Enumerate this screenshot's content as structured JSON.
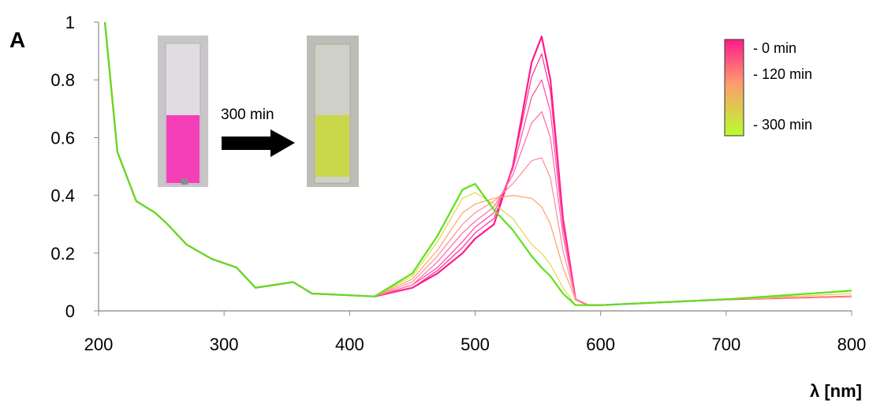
{
  "chart_data": {
    "type": "line",
    "ylabel": "A",
    "xlabel": "λ [nm]",
    "xlim": [
      200,
      800
    ],
    "ylim": [
      0,
      1
    ],
    "x_ticks": [
      "200",
      "300",
      "400",
      "500",
      "600",
      "700",
      "800"
    ],
    "y_ticks": [
      "0",
      "0.2",
      "0.4",
      "0.6",
      "0.8",
      "1"
    ],
    "grid": false,
    "legend": {
      "placement": "top-right",
      "type": "color-gradient",
      "labels": [
        "-  0 min",
        "- 120 min",
        "- 300 min"
      ],
      "colors": [
        "#ff1a8c",
        "#ff9a6e",
        "#b8ff2e"
      ]
    },
    "inset": {
      "arrow_label": "300 min",
      "start_color": "#f53fb8",
      "end_color": "#c9d84a"
    },
    "series": [
      {
        "color": "#ff1a8c",
        "points": [
          [
            205,
            1.0
          ],
          [
            215,
            0.55
          ],
          [
            230,
            0.38
          ],
          [
            245,
            0.34
          ],
          [
            255,
            0.3
          ],
          [
            270,
            0.23
          ],
          [
            290,
            0.18
          ],
          [
            310,
            0.15
          ],
          [
            325,
            0.08
          ],
          [
            340,
            0.09
          ],
          [
            355,
            0.1
          ],
          [
            370,
            0.06
          ],
          [
            420,
            0.05
          ],
          [
            450,
            0.08
          ],
          [
            470,
            0.13
          ],
          [
            490,
            0.2
          ],
          [
            500,
            0.25
          ],
          [
            515,
            0.3
          ],
          [
            530,
            0.5
          ],
          [
            545,
            0.86
          ],
          [
            553,
            0.95
          ],
          [
            560,
            0.8
          ],
          [
            570,
            0.32
          ],
          [
            580,
            0.04
          ],
          [
            590,
            0.02
          ],
          [
            600,
            0.02
          ],
          [
            700,
            0.04
          ],
          [
            800,
            0.05
          ]
        ]
      },
      {
        "color": "#ff2e95",
        "points": [
          [
            205,
            1.0
          ],
          [
            215,
            0.55
          ],
          [
            230,
            0.38
          ],
          [
            245,
            0.34
          ],
          [
            255,
            0.3
          ],
          [
            270,
            0.23
          ],
          [
            290,
            0.18
          ],
          [
            310,
            0.15
          ],
          [
            325,
            0.08
          ],
          [
            340,
            0.09
          ],
          [
            355,
            0.1
          ],
          [
            370,
            0.06
          ],
          [
            420,
            0.05
          ],
          [
            450,
            0.08
          ],
          [
            470,
            0.14
          ],
          [
            490,
            0.22
          ],
          [
            500,
            0.27
          ],
          [
            515,
            0.32
          ],
          [
            530,
            0.5
          ],
          [
            545,
            0.81
          ],
          [
            553,
            0.89
          ],
          [
            560,
            0.76
          ],
          [
            570,
            0.31
          ],
          [
            580,
            0.04
          ],
          [
            590,
            0.02
          ],
          [
            600,
            0.02
          ],
          [
            700,
            0.04
          ],
          [
            800,
            0.05
          ]
        ]
      },
      {
        "color": "#ff4aa0",
        "points": [
          [
            205,
            1.0
          ],
          [
            215,
            0.55
          ],
          [
            230,
            0.38
          ],
          [
            245,
            0.34
          ],
          [
            255,
            0.3
          ],
          [
            270,
            0.23
          ],
          [
            290,
            0.18
          ],
          [
            310,
            0.15
          ],
          [
            325,
            0.08
          ],
          [
            340,
            0.09
          ],
          [
            355,
            0.1
          ],
          [
            370,
            0.06
          ],
          [
            420,
            0.05
          ],
          [
            450,
            0.09
          ],
          [
            470,
            0.15
          ],
          [
            490,
            0.24
          ],
          [
            500,
            0.29
          ],
          [
            515,
            0.34
          ],
          [
            530,
            0.49
          ],
          [
            545,
            0.74
          ],
          [
            553,
            0.8
          ],
          [
            560,
            0.69
          ],
          [
            570,
            0.29
          ],
          [
            580,
            0.04
          ],
          [
            590,
            0.02
          ],
          [
            600,
            0.02
          ],
          [
            700,
            0.04
          ],
          [
            800,
            0.05
          ]
        ]
      },
      {
        "color": "#ff6aa8",
        "points": [
          [
            205,
            1.0
          ],
          [
            215,
            0.55
          ],
          [
            230,
            0.38
          ],
          [
            245,
            0.34
          ],
          [
            255,
            0.3
          ],
          [
            270,
            0.23
          ],
          [
            290,
            0.18
          ],
          [
            310,
            0.15
          ],
          [
            325,
            0.08
          ],
          [
            340,
            0.09
          ],
          [
            355,
            0.1
          ],
          [
            370,
            0.06
          ],
          [
            420,
            0.05
          ],
          [
            450,
            0.09
          ],
          [
            470,
            0.17
          ],
          [
            490,
            0.27
          ],
          [
            500,
            0.31
          ],
          [
            515,
            0.36
          ],
          [
            530,
            0.47
          ],
          [
            545,
            0.65
          ],
          [
            553,
            0.69
          ],
          [
            560,
            0.6
          ],
          [
            570,
            0.26
          ],
          [
            580,
            0.04
          ],
          [
            590,
            0.02
          ],
          [
            600,
            0.02
          ],
          [
            700,
            0.04
          ],
          [
            800,
            0.05
          ]
        ]
      },
      {
        "color": "#ff8d95",
        "points": [
          [
            205,
            1.0
          ],
          [
            215,
            0.55
          ],
          [
            230,
            0.38
          ],
          [
            245,
            0.34
          ],
          [
            255,
            0.3
          ],
          [
            270,
            0.23
          ],
          [
            290,
            0.18
          ],
          [
            310,
            0.15
          ],
          [
            325,
            0.08
          ],
          [
            340,
            0.09
          ],
          [
            355,
            0.1
          ],
          [
            370,
            0.06
          ],
          [
            420,
            0.05
          ],
          [
            450,
            0.1
          ],
          [
            470,
            0.19
          ],
          [
            490,
            0.3
          ],
          [
            500,
            0.34
          ],
          [
            515,
            0.38
          ],
          [
            530,
            0.44
          ],
          [
            545,
            0.52
          ],
          [
            553,
            0.53
          ],
          [
            560,
            0.46
          ],
          [
            570,
            0.21
          ],
          [
            580,
            0.04
          ],
          [
            590,
            0.02
          ],
          [
            600,
            0.02
          ],
          [
            700,
            0.04
          ],
          [
            800,
            0.05
          ]
        ]
      },
      {
        "color": "#ffa26a",
        "points": [
          [
            205,
            1.0
          ],
          [
            215,
            0.55
          ],
          [
            230,
            0.38
          ],
          [
            245,
            0.34
          ],
          [
            255,
            0.3
          ],
          [
            270,
            0.23
          ],
          [
            290,
            0.18
          ],
          [
            310,
            0.15
          ],
          [
            325,
            0.08
          ],
          [
            340,
            0.09
          ],
          [
            355,
            0.1
          ],
          [
            370,
            0.06
          ],
          [
            420,
            0.05
          ],
          [
            450,
            0.11
          ],
          [
            470,
            0.21
          ],
          [
            490,
            0.34
          ],
          [
            500,
            0.37
          ],
          [
            515,
            0.39
          ],
          [
            530,
            0.4
          ],
          [
            545,
            0.39
          ],
          [
            553,
            0.36
          ],
          [
            560,
            0.3
          ],
          [
            570,
            0.15
          ],
          [
            580,
            0.04
          ],
          [
            590,
            0.02
          ],
          [
            600,
            0.02
          ],
          [
            700,
            0.04
          ],
          [
            800,
            0.05
          ]
        ]
      },
      {
        "color": "#e6d64a",
        "points": [
          [
            205,
            1.0
          ],
          [
            215,
            0.55
          ],
          [
            230,
            0.38
          ],
          [
            245,
            0.34
          ],
          [
            255,
            0.3
          ],
          [
            270,
            0.23
          ],
          [
            290,
            0.18
          ],
          [
            310,
            0.15
          ],
          [
            325,
            0.08
          ],
          [
            340,
            0.09
          ],
          [
            355,
            0.1
          ],
          [
            370,
            0.06
          ],
          [
            420,
            0.05
          ],
          [
            450,
            0.12
          ],
          [
            470,
            0.24
          ],
          [
            490,
            0.39
          ],
          [
            500,
            0.41
          ],
          [
            515,
            0.37
          ],
          [
            530,
            0.32
          ],
          [
            545,
            0.23
          ],
          [
            553,
            0.2
          ],
          [
            560,
            0.16
          ],
          [
            570,
            0.08
          ],
          [
            580,
            0.02
          ],
          [
            590,
            0.02
          ],
          [
            600,
            0.02
          ],
          [
            700,
            0.04
          ],
          [
            800,
            0.06
          ]
        ]
      },
      {
        "color": "#5ee01c",
        "points": [
          [
            205,
            1.0
          ],
          [
            215,
            0.55
          ],
          [
            230,
            0.38
          ],
          [
            245,
            0.34
          ],
          [
            255,
            0.3
          ],
          [
            270,
            0.23
          ],
          [
            290,
            0.18
          ],
          [
            310,
            0.15
          ],
          [
            325,
            0.08
          ],
          [
            340,
            0.09
          ],
          [
            355,
            0.1
          ],
          [
            370,
            0.06
          ],
          [
            420,
            0.05
          ],
          [
            450,
            0.13
          ],
          [
            470,
            0.26
          ],
          [
            490,
            0.42
          ],
          [
            500,
            0.44
          ],
          [
            515,
            0.35
          ],
          [
            530,
            0.28
          ],
          [
            545,
            0.19
          ],
          [
            553,
            0.15
          ],
          [
            560,
            0.12
          ],
          [
            570,
            0.06
          ],
          [
            580,
            0.02
          ],
          [
            590,
            0.02
          ],
          [
            600,
            0.02
          ],
          [
            700,
            0.04
          ],
          [
            800,
            0.07
          ]
        ]
      }
    ]
  }
}
